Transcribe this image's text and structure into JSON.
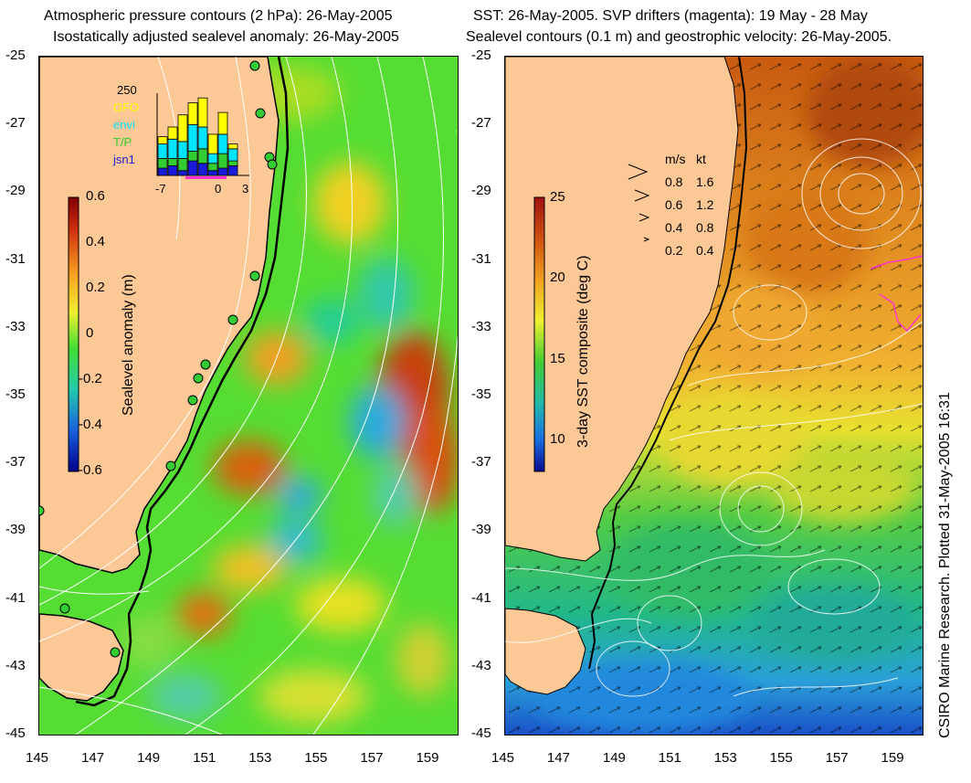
{
  "left_panel": {
    "title_line1": "Atmospheric pressure contours (2 hPa): 26-May-2005",
    "title_line2": "Isostatically adjusted sealevel anomaly: 26-May-2005",
    "colorbar": {
      "label": "Sealevel anomaly (m)",
      "ticks": [
        "0.6",
        "0.4",
        "0.2",
        "0",
        "-0.2",
        "-0.4",
        "-0.6"
      ],
      "range": [
        -0.6,
        0.6
      ]
    },
    "histogram": {
      "max_label": "250",
      "x_ticks": [
        "-7",
        "0",
        "3"
      ],
      "legend": [
        {
          "label": "GFO",
          "color": "#ffff00"
        },
        {
          "label": "envi",
          "color": "#00e5ff"
        },
        {
          "label": "T/P",
          "color": "#33cc33"
        },
        {
          "label": "jsn1",
          "color": "#1a1adb"
        }
      ],
      "bars": [
        {
          "day": -7,
          "jsn1": 15,
          "tp": 20,
          "envi": 30,
          "gfo": 15
        },
        {
          "day": -6,
          "jsn1": 20,
          "tp": 15,
          "envi": 40,
          "gfo": 25
        },
        {
          "day": -5,
          "jsn1": 10,
          "tp": 25,
          "envi": 35,
          "gfo": 55
        },
        {
          "day": -4,
          "jsn1": 30,
          "tp": 20,
          "envi": 55,
          "gfo": 45
        },
        {
          "day": -3,
          "jsn1": 25,
          "tp": 30,
          "envi": 45,
          "gfo": 60
        },
        {
          "day": -2,
          "jsn1": 10,
          "tp": 15,
          "envi": 20,
          "gfo": 40
        },
        {
          "day": -1,
          "jsn1": 15,
          "tp": 30,
          "envi": 40,
          "gfo": 45
        },
        {
          "day": 0,
          "jsn1": 20,
          "tp": 10,
          "envi": 25,
          "gfo": 10
        }
      ]
    }
  },
  "right_panel": {
    "title_line1": "SST: 26-May-2005. SVP drifters (magenta): 19 May - 28 May",
    "title_line2": "Sealevel contours (0.1 m) and geostrophic velocity: 26-May-2005.",
    "colorbar": {
      "label": "3-day SST composite (deg C)",
      "ticks": [
        "25",
        "20",
        "15",
        "10"
      ],
      "range": [
        8,
        25
      ]
    },
    "velocity_legend": {
      "header_ms": "m/s",
      "header_kt": "kt",
      "rows": [
        {
          "ms": "0.8",
          "kt": "1.6"
        },
        {
          "ms": "0.6",
          "kt": "1.2"
        },
        {
          "ms": "0.4",
          "kt": "0.8"
        },
        {
          "ms": "0.2",
          "kt": "0.4"
        }
      ]
    }
  },
  "axes": {
    "y_ticks": [
      "-25",
      "-27",
      "-29",
      "-31",
      "-33",
      "-35",
      "-37",
      "-39",
      "-41",
      "-43",
      "-45"
    ],
    "x_ticks": [
      "145",
      "147",
      "149",
      "151",
      "153",
      "155",
      "157",
      "159"
    ],
    "lon_range": [
      145,
      160
    ],
    "lat_range": [
      -45,
      -25
    ]
  },
  "credit": "CSIRO Marine Research. Plotted 31-May-2005 16:31",
  "colors": {
    "land": "#fcc896",
    "coast": "#000000",
    "contour": "#ffffff",
    "drifter": "#ff33cc",
    "tide_gauge": "#33cc33"
  }
}
